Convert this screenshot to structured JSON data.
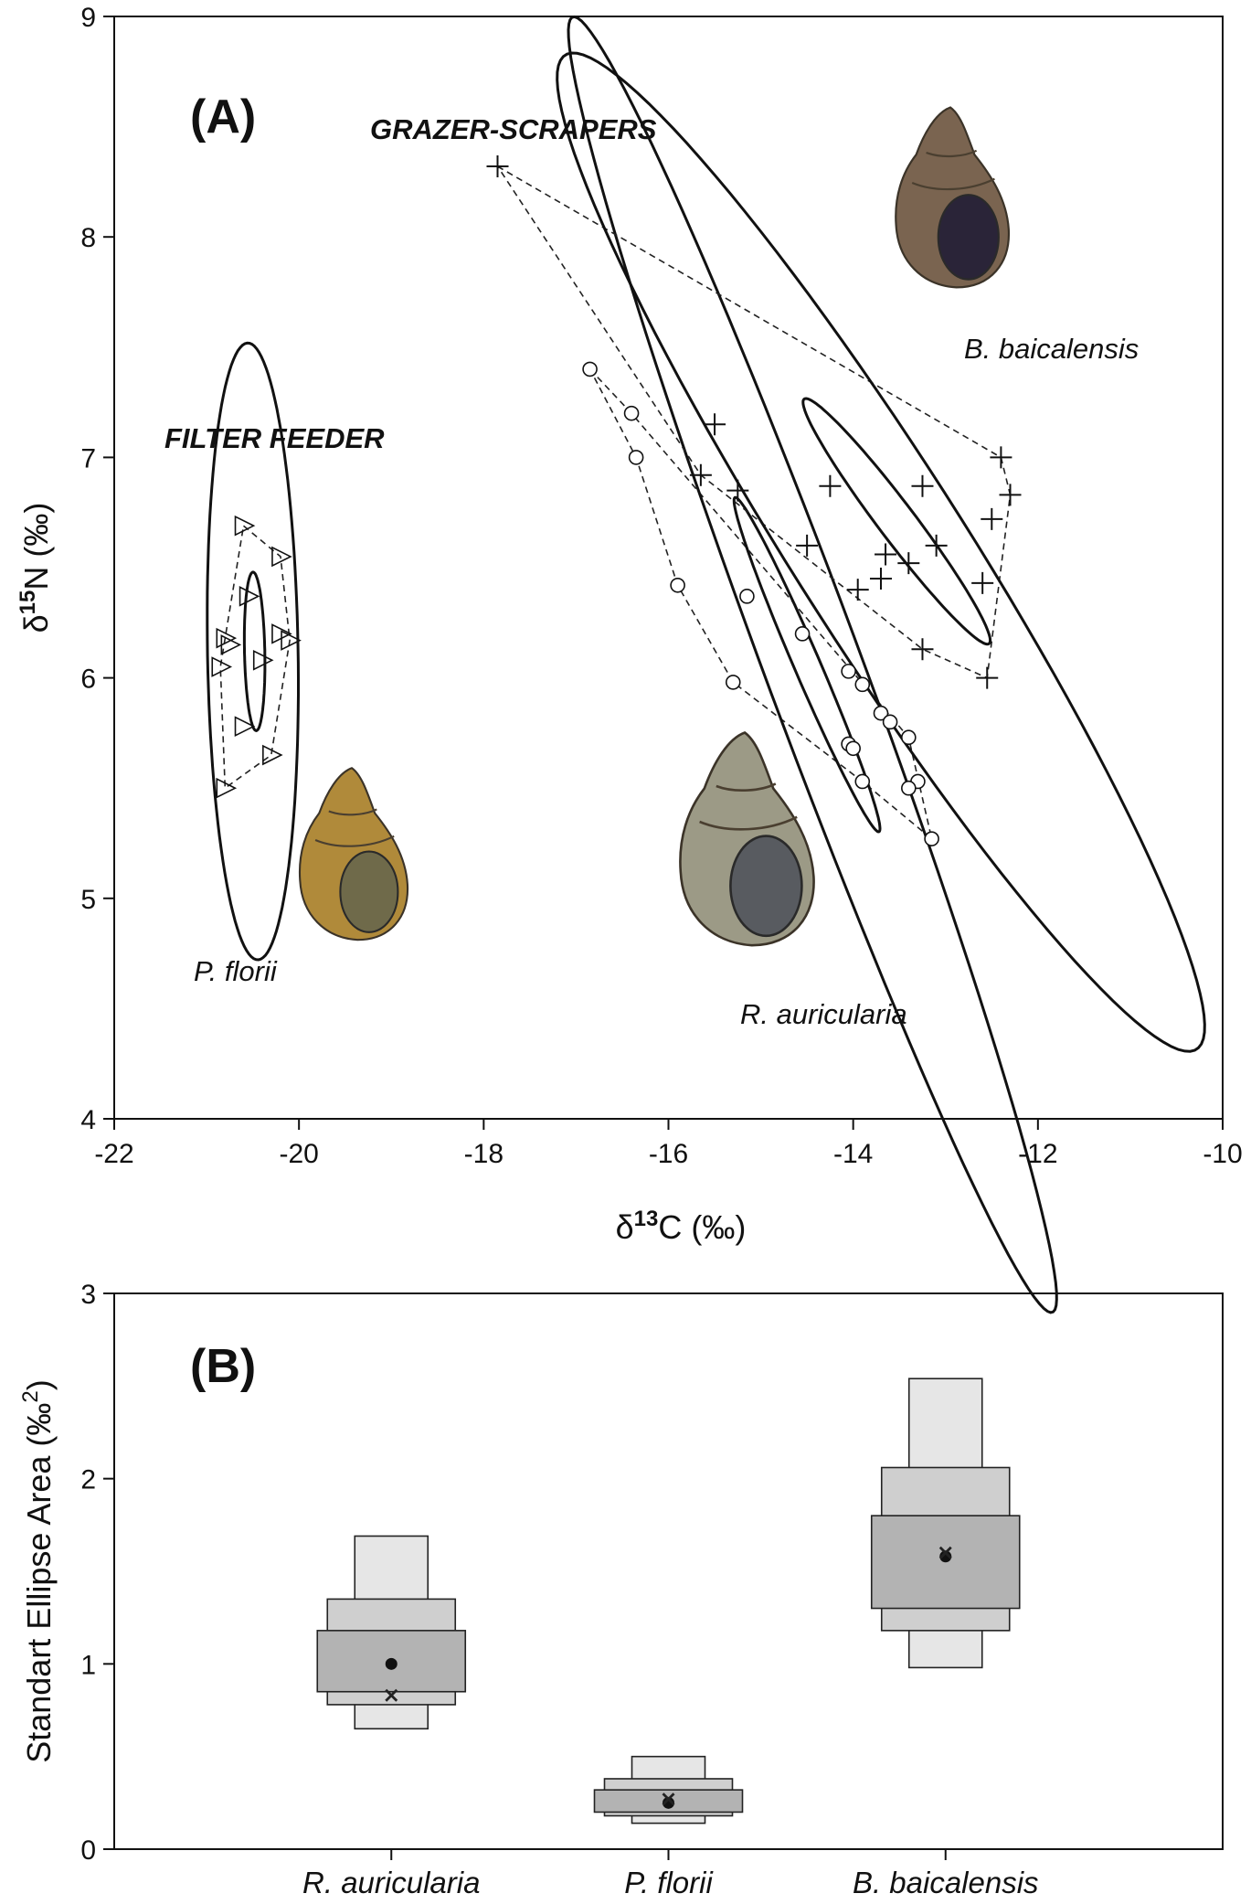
{
  "chart_data": [
    {
      "type": "scatter",
      "panel_label": "(A)",
      "xlabel": {
        "base": "δ",
        "sup": "13",
        "rest": "C (‰)"
      },
      "ylabel": {
        "base": "δ",
        "sup": "15",
        "rest": "N (‰)"
      },
      "xlim": [
        -22,
        -10
      ],
      "ylim": [
        4,
        9
      ],
      "x_ticks": [
        "-22",
        "-20",
        "-18",
        "-16",
        "-14",
        "-12",
        "-10"
      ],
      "y_ticks": [
        "4",
        "5",
        "6",
        "7",
        "8",
        "9"
      ],
      "group_labels": {
        "filter": "FILTER FEEDER",
        "grazers": "GRAZER-SCRAPERS"
      },
      "species_labels": {
        "pf": "P. florii",
        "ra": "R. auricularia",
        "bb": "B. baicalensis"
      },
      "series": [
        {
          "name": "P. florii",
          "marker": "triangle",
          "points": [
            [
              -20.6,
              6.69
            ],
            [
              -20.2,
              6.55
            ],
            [
              -20.55,
              6.37
            ],
            [
              -20.8,
              6.18
            ],
            [
              -20.75,
              6.15
            ],
            [
              -20.2,
              6.2
            ],
            [
              -20.1,
              6.17
            ],
            [
              -20.85,
              6.05
            ],
            [
              -20.4,
              6.08
            ],
            [
              -20.6,
              5.78
            ],
            [
              -20.3,
              5.65
            ],
            [
              -20.8,
              5.5
            ]
          ],
          "hull": [
            [
              -20.6,
              6.69
            ],
            [
              -20.2,
              6.55
            ],
            [
              -20.1,
              6.17
            ],
            [
              -20.3,
              5.65
            ],
            [
              -20.8,
              5.5
            ],
            [
              -20.85,
              6.05
            ]
          ],
          "ellipse_large": {
            "cx": -20.5,
            "cy": 6.12,
            "rx": 1.4,
            "ry": 0.49,
            "angle": -87.5
          },
          "ellipse_small": {
            "cx": -20.48,
            "cy": 6.12,
            "rx": 0.36,
            "ry": 0.11,
            "angle": -87
          }
        },
        {
          "name": "R. auricularia",
          "marker": "circle",
          "points": [
            [
              -16.85,
              7.4
            ],
            [
              -16.4,
              7.2
            ],
            [
              -16.35,
              7.0
            ],
            [
              -15.9,
              6.42
            ],
            [
              -15.15,
              6.37
            ],
            [
              -14.55,
              6.2
            ],
            [
              -14.05,
              6.03
            ],
            [
              -13.9,
              5.97
            ],
            [
              -15.3,
              5.98
            ],
            [
              -13.7,
              5.84
            ],
            [
              -13.6,
              5.8
            ],
            [
              -13.4,
              5.73
            ],
            [
              -14.05,
              5.7
            ],
            [
              -14.0,
              5.68
            ],
            [
              -13.9,
              5.53
            ],
            [
              -13.3,
              5.53
            ],
            [
              -13.4,
              5.5
            ],
            [
              -13.15,
              5.27
            ]
          ],
          "hull": [
            [
              -16.85,
              7.4
            ],
            [
              -16.4,
              7.2
            ],
            [
              -13.4,
              5.73
            ],
            [
              -13.15,
              5.27
            ],
            [
              -13.9,
              5.53
            ],
            [
              -15.3,
              5.98
            ],
            [
              -15.9,
              6.42
            ],
            [
              -16.35,
              7.0
            ]
          ],
          "ellipse_large": {
            "cx": -14.44,
            "cy": 6.06,
            "rx": 3.93,
            "ry": 0.42,
            "angle": -48.1
          },
          "ellipse_small": {
            "cx": -14.5,
            "cy": 6.06,
            "rx": 1.09,
            "ry": 0.107,
            "angle": -43.8
          }
        },
        {
          "name": "B. baicalensis",
          "marker": "plus",
          "points": [
            [
              -17.85,
              8.32
            ],
            [
              -15.5,
              7.15
            ],
            [
              -15.65,
              6.92
            ],
            [
              -15.25,
              6.85
            ],
            [
              -14.25,
              6.87
            ],
            [
              -13.25,
              6.87
            ],
            [
              -12.4,
              7.0
            ],
            [
              -12.3,
              6.83
            ],
            [
              -12.5,
              6.72
            ],
            [
              -14.5,
              6.6
            ],
            [
              -13.1,
              6.6
            ],
            [
              -13.65,
              6.56
            ],
            [
              -13.4,
              6.52
            ],
            [
              -13.7,
              6.45
            ],
            [
              -13.95,
              6.4
            ],
            [
              -12.6,
              6.43
            ],
            [
              -13.25,
              6.13
            ],
            [
              -12.55,
              6.0
            ]
          ],
          "hull": [
            [
              -17.85,
              8.32
            ],
            [
              -12.4,
              7.0
            ],
            [
              -12.3,
              6.83
            ],
            [
              -12.55,
              6.0
            ],
            [
              -13.25,
              6.13
            ],
            [
              -15.65,
              6.92
            ]
          ],
          "ellipse_large": {
            "cx": -13.7,
            "cy": 6.57,
            "rx": 4.13,
            "ry": 0.6,
            "angle": -32.3
          },
          "ellipse_small": {
            "cx": -13.53,
            "cy": 6.71,
            "rx": 1.15,
            "ry": 0.12,
            "angle": -28.4
          }
        }
      ]
    },
    {
      "type": "bar",
      "panel_label": "(B)",
      "ylabel": {
        "text": "Standart Ellipse Area  (‰",
        "sup": "2",
        "close": ")"
      },
      "ylim": [
        0,
        3
      ],
      "y_ticks": [
        "0",
        "1",
        "2",
        "3"
      ],
      "categories": [
        "R. auricularia",
        "P. florii",
        "B. baicalensis"
      ],
      "series": [
        {
          "name": "R. auricularia",
          "outer": [
            0.65,
            1.69
          ],
          "middle": [
            0.78,
            1.35
          ],
          "inner": [
            0.85,
            1.18
          ],
          "mode": 1.0,
          "mean": 0.83
        },
        {
          "name": "P. florii",
          "outer": [
            0.14,
            0.5
          ],
          "middle": [
            0.18,
            0.38
          ],
          "inner": [
            0.2,
            0.32
          ],
          "mode": 0.25,
          "mean": 0.27
        },
        {
          "name": "B. baicalensis",
          "outer": [
            0.98,
            2.54
          ],
          "middle": [
            1.18,
            2.06
          ],
          "inner": [
            1.3,
            1.8
          ],
          "mode": 1.58,
          "mean": 1.6
        }
      ],
      "colors": {
        "outer": "#e6e6e6",
        "middle": "#cfcfcf",
        "inner": "#b3b3b3"
      }
    }
  ]
}
